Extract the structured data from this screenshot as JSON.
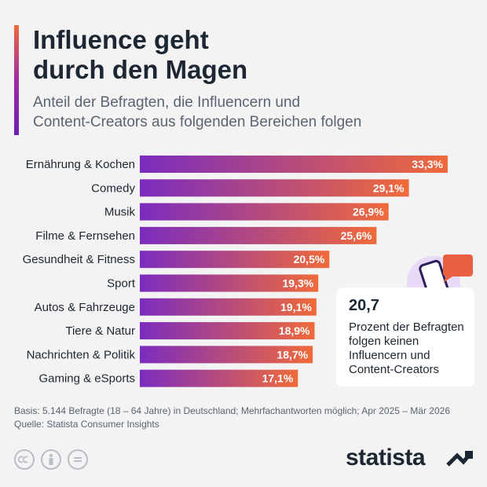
{
  "header": {
    "title_line1": "Influence geht",
    "title_line2": "durch den Magen",
    "subtitle_line1": "Anteil der Befragten, die Influencern und",
    "subtitle_line2": "Content-Creators aus folgenden Bereichen folgen"
  },
  "chart_data": {
    "type": "bar",
    "orientation": "horizontal",
    "categories": [
      "Ernährung & Kochen",
      "Comedy",
      "Musik",
      "Filme & Fernsehen",
      "Gesundheit & Fitness",
      "Sport",
      "Autos & Fahrzeuge",
      "Tiere & Natur",
      "Nachrichten & Politik",
      "Gaming & eSports"
    ],
    "values": [
      33.3,
      29.1,
      26.9,
      25.6,
      20.5,
      19.3,
      19.1,
      18.9,
      18.7,
      17.1
    ],
    "value_labels": [
      "33,3%",
      "29,1%",
      "26,9%",
      "25,6%",
      "20,5%",
      "19,3%",
      "19,1%",
      "18,9%",
      "18,7%",
      "17,1%"
    ],
    "unit": "%",
    "xlim": [
      0,
      33.3
    ],
    "grid": false,
    "legend": "none",
    "colors": {
      "start": "#7b2cbf",
      "end": "#f06a3a"
    }
  },
  "callout": {
    "value": "20,7",
    "text_lines": [
      "Prozent der Befragten",
      "folgen keinen",
      "Influencern und",
      "Content-Creators"
    ],
    "icon": "phone-chat-icon"
  },
  "footer": {
    "basis": "Basis: 5.144 Befragte (18 – 64 Jahre) in Deutschland; Mehrfachantworten möglich; Apr 2025 – Mär 2026",
    "source": "Quelle: Statista Consumer Insights",
    "license_icons": [
      "cc-icon",
      "by-icon",
      "nd-icon"
    ],
    "brand": "statista"
  }
}
